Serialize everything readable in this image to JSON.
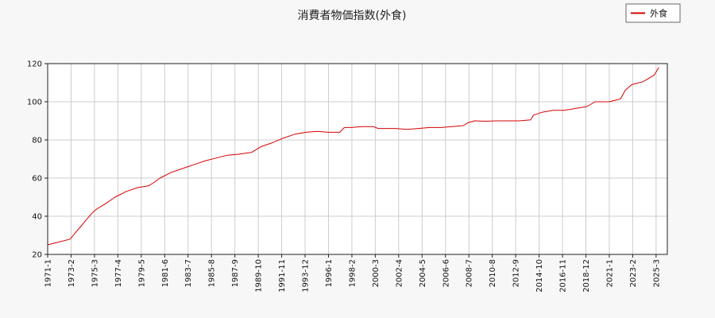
{
  "chart_data": {
    "type": "line",
    "title": "消費者物価指数(外食)",
    "xlabel": "",
    "ylabel": "",
    "ylim": [
      20,
      120
    ],
    "y_ticks": [
      20,
      40,
      60,
      80,
      100,
      120
    ],
    "x_tick_labels": [
      "1971-1",
      "1973-2",
      "1975-3",
      "1977-4",
      "1979-5",
      "1981-6",
      "1983-7",
      "1985-8",
      "1987-9",
      "1989-10",
      "1991-11",
      "1993-12",
      "1996-1",
      "1998-2",
      "2000-3",
      "2002-4",
      "2004-5",
      "2006-6",
      "2008-7",
      "2010-8",
      "2012-9",
      "2014-10",
      "2016-11",
      "2018-12",
      "2021-1",
      "2023-2",
      "2025-3"
    ],
    "grid": true,
    "legend_position": "top-right",
    "line_color": "#d40000",
    "series": [
      {
        "name": "外食",
        "x": [
          "1971-1",
          "1972-1",
          "1973-1",
          "1973-6",
          "1974-1",
          "1974-6",
          "1975-1",
          "1975-6",
          "1976-1",
          "1977-1",
          "1978-1",
          "1979-1",
          "1980-1",
          "1980-6",
          "1981-1",
          "1982-1",
          "1983-1",
          "1984-1",
          "1985-1",
          "1986-1",
          "1987-1",
          "1988-1",
          "1989-3",
          "1990-1",
          "1991-1",
          "1992-1",
          "1993-1",
          "1994-1",
          "1995-1",
          "1996-1",
          "1997-1",
          "1997-6",
          "1998-1",
          "1999-1",
          "2000-1",
          "2000-6",
          "2001-1",
          "2002-1",
          "2003-1",
          "2004-1",
          "2005-1",
          "2006-1",
          "2007-1",
          "2008-1",
          "2008-6",
          "2009-1",
          "2010-1",
          "2011-1",
          "2012-1",
          "2013-1",
          "2014-1",
          "2014-4",
          "2015-1",
          "2016-1",
          "2017-1",
          "2018-1",
          "2019-1",
          "2019-10",
          "2020-1",
          "2021-1",
          "2022-1",
          "2022-6",
          "2023-1",
          "2024-1",
          "2025-1",
          "2025-6"
        ],
        "values": [
          25,
          26.5,
          28,
          31,
          35,
          38,
          42,
          44,
          46,
          50,
          53,
          55,
          56,
          57.5,
          60,
          63,
          65,
          67,
          69,
          70.5,
          72,
          72.5,
          73.5,
          76.5,
          78.5,
          81,
          83,
          84,
          84.5,
          84,
          84,
          86.5,
          86.5,
          87,
          87,
          86,
          86,
          86,
          85.5,
          86,
          86.5,
          86.5,
          87,
          87.5,
          89,
          90,
          89.8,
          90,
          90,
          90,
          90.5,
          93,
          94.5,
          95.5,
          95.5,
          96.5,
          97.5,
          100,
          100,
          100,
          101.5,
          106,
          109,
          110.5,
          114,
          118
        ]
      }
    ]
  }
}
